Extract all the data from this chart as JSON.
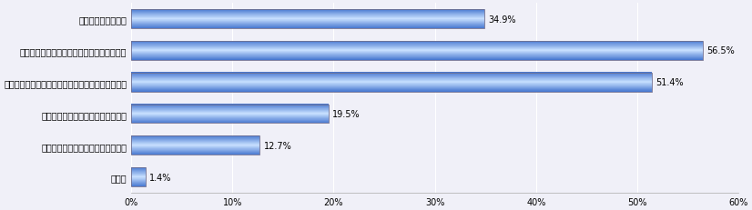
{
  "categories": [
    "買い時がわからない",
    "資金計画やローンの選び方などがわからない",
    "物件の見分け方やチェックすべき場所がわからない",
    "まず何をすればよいのかわからない",
    "誰に相談したらよいのかわからない",
    "その他"
  ],
  "values": [
    34.9,
    56.5,
    51.4,
    19.5,
    12.7,
    1.4
  ],
  "xlim": [
    0,
    60
  ],
  "xticks": [
    0,
    10,
    20,
    30,
    40,
    50,
    60
  ],
  "xticklabels": [
    "0%",
    "10%",
    "20%",
    "30%",
    "40%",
    "50%",
    "60%"
  ],
  "bar_color_light": "#7ab0f8",
  "bar_color_dark": "#3060c8",
  "bar_color_white_center": "#aad0ff",
  "bar_edge_color": "#707090",
  "background_color": "#f0f0f8",
  "plot_bg_color": "#f0f0f8",
  "grid_color": "#ffffff",
  "label_fontsize": 7,
  "value_fontsize": 7,
  "tick_fontsize": 7,
  "bar_height": 0.6
}
